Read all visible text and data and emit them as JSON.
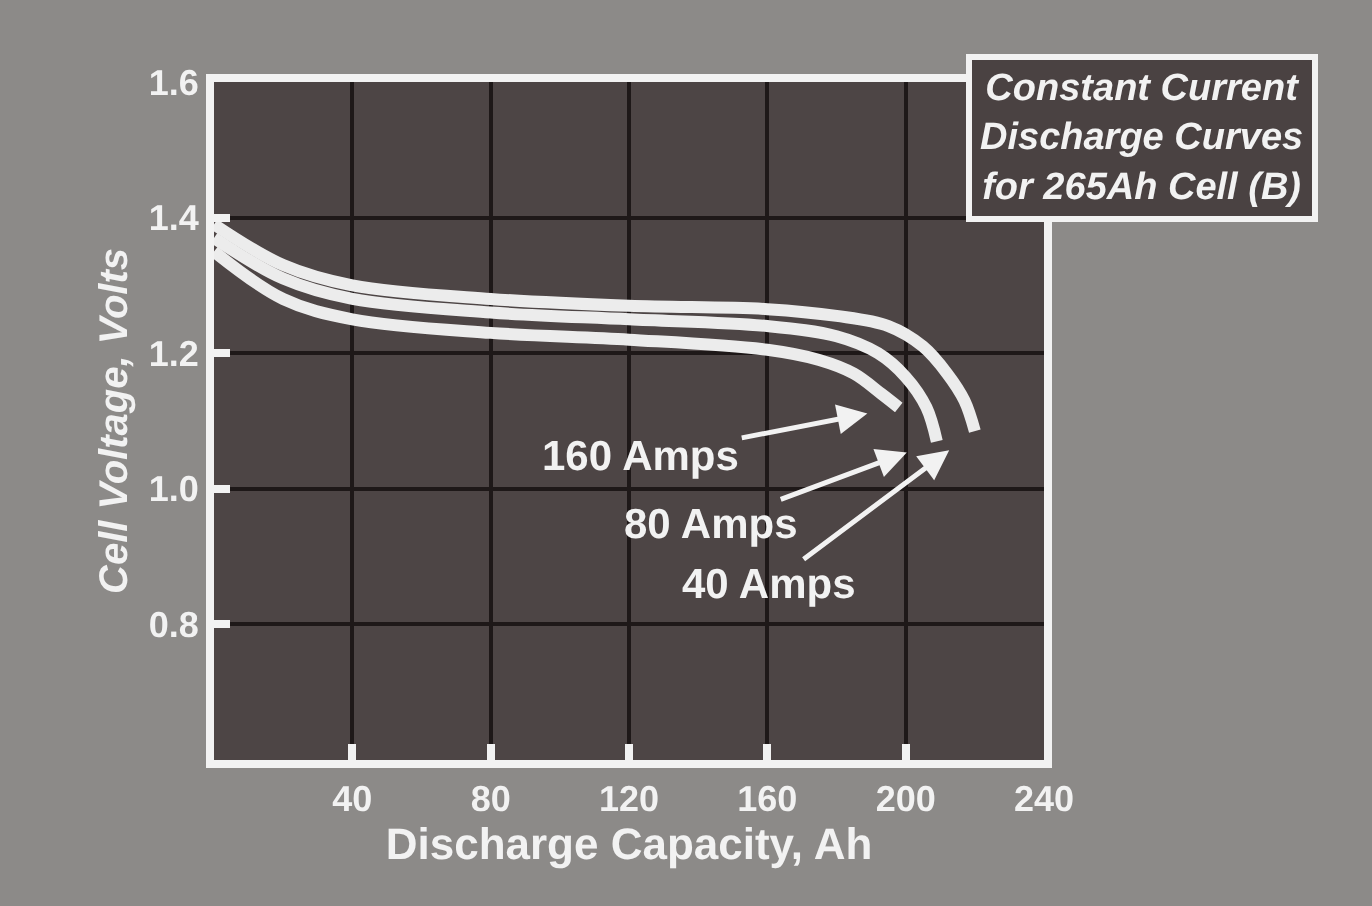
{
  "chart_data": {
    "type": "line",
    "title": "Constant Current Discharge Curves for 265Ah Cell (B)",
    "xlabel": "Discharge Capacity, Ah",
    "ylabel": "Cell Voltage, Volts",
    "xlim": [
      0,
      240
    ],
    "xticks": [
      40,
      80,
      120,
      160,
      200,
      240
    ],
    "ylim": [
      0.6,
      1.6
    ],
    "yticks": [
      0.8,
      {
        "value": 1.0,
        "label": "1.0"
      },
      1.2,
      1.4,
      1.6
    ],
    "grid": true,
    "marker": "none",
    "line_style": "solid",
    "series": [
      {
        "name": "40 Amps",
        "color": "#ececec",
        "x": [
          0,
          20,
          40,
          80,
          120,
          160,
          180,
          195,
          205,
          212,
          217,
          220
        ],
        "values": [
          1.39,
          1.33,
          1.3,
          1.28,
          1.27,
          1.265,
          1.255,
          1.24,
          1.21,
          1.17,
          1.13,
          1.085
        ]
      },
      {
        "name": "80 Amps",
        "color": "#ececec",
        "x": [
          0,
          20,
          40,
          80,
          120,
          160,
          180,
          192,
          200,
          206,
          209
        ],
        "values": [
          1.37,
          1.31,
          1.28,
          1.26,
          1.25,
          1.24,
          1.225,
          1.2,
          1.165,
          1.12,
          1.07
        ]
      },
      {
        "name": "160 Amps",
        "color": "#ececec",
        "x": [
          0,
          20,
          40,
          80,
          120,
          160,
          175,
          185,
          193,
          198
        ],
        "values": [
          1.35,
          1.28,
          1.25,
          1.23,
          1.22,
          1.205,
          1.19,
          1.17,
          1.14,
          1.12
        ]
      }
    ]
  }
}
